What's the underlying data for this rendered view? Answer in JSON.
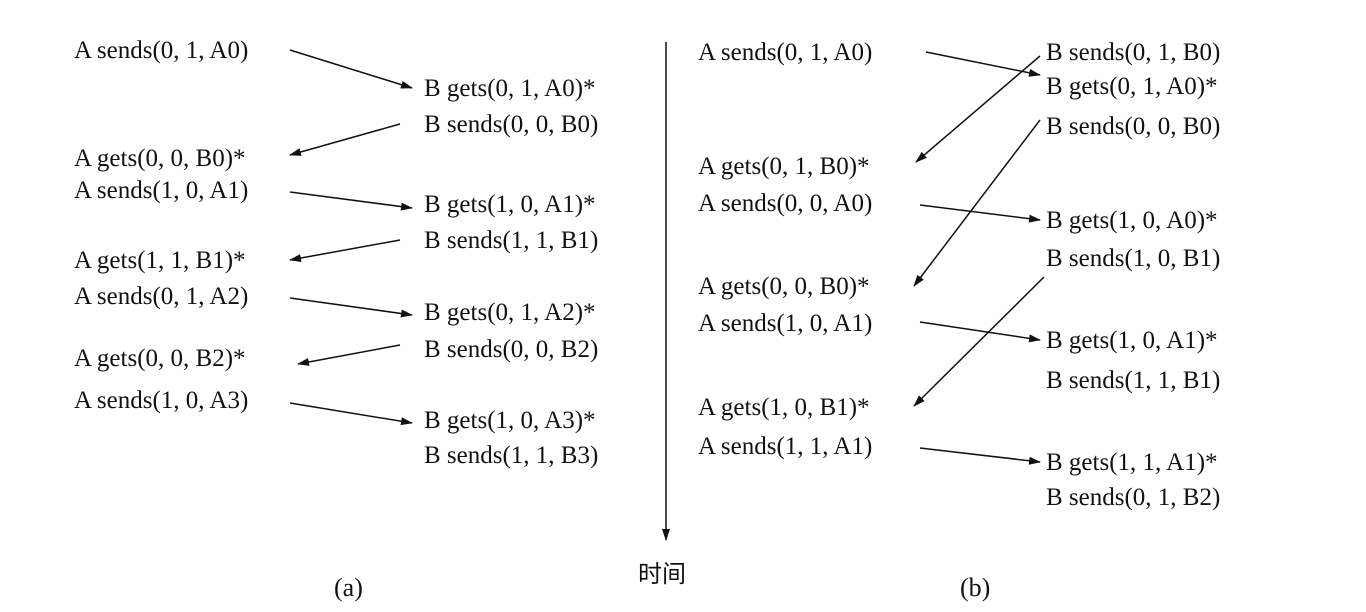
{
  "panel_a": {
    "caption": "(a)",
    "left_labels": [
      "A sends(0, 1, A0)",
      "A gets(0, 0, B0)*",
      "A sends(1, 0, A1)",
      "A gets(1, 1, B1)*",
      "A sends(0, 1, A2)",
      "A gets(0, 0, B2)*",
      "A sends(1, 0, A3)"
    ],
    "right_labels": [
      "B gets(0, 1, A0)*",
      "B sends(0, 0, B0)",
      "B gets(1, 0, A1)*",
      "B sends(1, 1, B1)",
      "B gets(0, 1, A2)*",
      "B sends(0, 0, B2)",
      "B gets(1, 0, A3)*",
      "B sends(1, 1, B3)"
    ]
  },
  "panel_b": {
    "caption": "(b)",
    "left_labels": [
      "A sends(0, 1, A0)",
      "A gets(0, 1, B0)*",
      "A sends(0, 0, A0)",
      "A gets(0, 0, B0)*",
      "A sends(1, 0, A1)",
      "A gets(1, 0, B1)*",
      "A sends(1, 1, A1)"
    ],
    "right_labels": [
      "B sends(0, 1, B0)",
      "B gets(0, 1, A0)*",
      "B sends(0, 0, B0)",
      "B gets(1, 0, A0)*",
      "B sends(1, 0, B1)",
      "B gets(1, 0, A1)*",
      "B sends(1, 1, B1)",
      "B gets(1, 1, A1)*",
      "B sends(0, 1, B2)"
    ]
  },
  "time_axis": {
    "label": "时间"
  }
}
